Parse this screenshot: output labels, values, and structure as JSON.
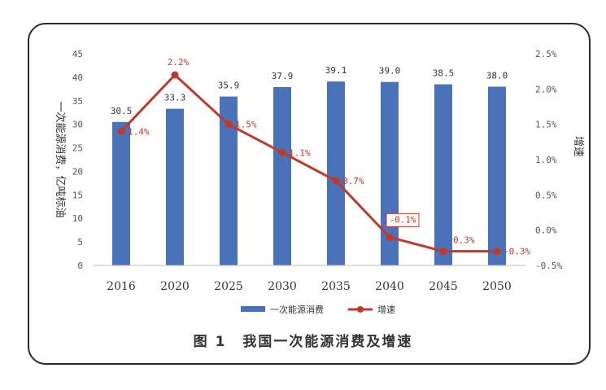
{
  "caption": {
    "number": "图 1",
    "title": "我国一次能源消费及增速"
  },
  "chart_data": {
    "type": "bar",
    "categories": [
      "2016",
      "2020",
      "2025",
      "2030",
      "2035",
      "2040",
      "2045",
      "2050"
    ],
    "series": [
      {
        "name": "一次能源消费",
        "type": "bar",
        "axis": "left",
        "color": "#4a72b8",
        "values": [
          30.5,
          33.3,
          35.9,
          37.9,
          39.1,
          39.0,
          38.5,
          38.0
        ],
        "labels": [
          "30.5",
          "33.3",
          "35.9",
          "37.9",
          "39.1",
          "39.0",
          "38.5",
          "38.0"
        ]
      },
      {
        "name": "增速",
        "type": "line",
        "axis": "right",
        "color": "#c0392b",
        "values": [
          1.4,
          2.2,
          1.5,
          1.1,
          0.7,
          -0.1,
          -0.3,
          -0.3
        ],
        "labels": [
          "1.4%",
          "2.2%",
          "1.5%",
          "1.1%",
          "0.7%",
          "-0.1%",
          "-0.3%",
          "-0.3%"
        ]
      }
    ],
    "ylabel": "一次能源消费，亿吨标油",
    "ylabel_right": "增速",
    "ylim": [
      0,
      45
    ],
    "yticks": [
      "0",
      "5",
      "10",
      "15",
      "20",
      "25",
      "30",
      "35",
      "40",
      "45"
    ],
    "ylim_right": [
      -0.5,
      2.5
    ],
    "yticks_right": [
      "-0.5%",
      "0.0%",
      "0.5%",
      "1.0%",
      "1.5%",
      "2.0%",
      "2.5%"
    ],
    "legend_position": "bottom",
    "grid": false
  }
}
